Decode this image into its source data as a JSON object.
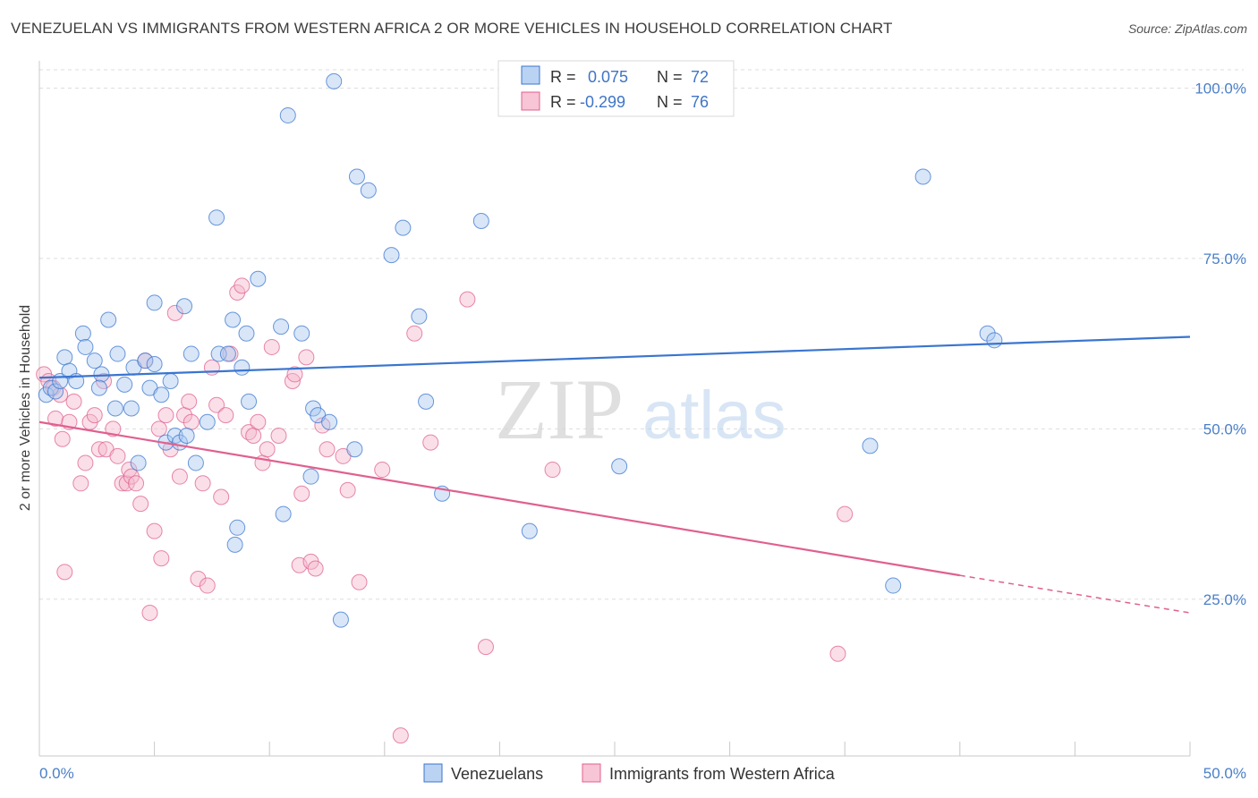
{
  "title": "VENEZUELAN VS IMMIGRANTS FROM WESTERN AFRICA 2 OR MORE VEHICLES IN HOUSEHOLD CORRELATION CHART",
  "source": "Source: ZipAtlas.com",
  "watermark": {
    "zip": "ZIP",
    "atlas": "atlas"
  },
  "colors": {
    "blue": "#3a75cf",
    "blue_fill": "#a9c8f0",
    "pink": "#e0608f",
    "pink_fill": "#f5b7cb",
    "tick": "#4a7fc8",
    "grid": "#dddddd"
  },
  "legend_box": {
    "rows": [
      {
        "r_label": "R =",
        "r_value": "0.075",
        "n_label": "N =",
        "n_value": "72"
      },
      {
        "r_label": "R =",
        "r_value": "-0.299",
        "n_label": "N =",
        "n_value": "76"
      }
    ]
  },
  "bottom_legend": {
    "venezuelans": "Venezuelans",
    "immigrants": "Immigrants from Western Africa"
  },
  "chart_data": {
    "type": "scatter",
    "title": "VENEZUELAN VS IMMIGRANTS FROM WESTERN AFRICA 2 OR MORE VEHICLES IN HOUSEHOLD CORRELATION CHART",
    "xlabel": "",
    "ylabel": "2 or more Vehicles in Household",
    "xlim": [
      0,
      50
    ],
    "ylim": [
      2,
      104
    ],
    "x_tick_labels": [
      "0.0%",
      "50.0%"
    ],
    "y_ticks": [
      25,
      50,
      75,
      100
    ],
    "y_tick_labels": [
      "25.0%",
      "50.0%",
      "75.0%",
      "100.0%"
    ],
    "grid": true,
    "series": [
      {
        "name": "Venezuelans",
        "color": "#3a75cf",
        "trend": {
          "x0": 0,
          "y0": 57.5,
          "x1": 50,
          "y1": 63.5
        },
        "points": [
          [
            0.3,
            55
          ],
          [
            0.5,
            56
          ],
          [
            0.7,
            55.5
          ],
          [
            0.9,
            57
          ],
          [
            1.1,
            60.5
          ],
          [
            1.3,
            58.5
          ],
          [
            1.6,
            57
          ],
          [
            1.9,
            64
          ],
          [
            2.0,
            62
          ],
          [
            2.4,
            60
          ],
          [
            2.7,
            58
          ],
          [
            2.6,
            56
          ],
          [
            3.0,
            66
          ],
          [
            3.3,
            53
          ],
          [
            3.4,
            61
          ],
          [
            3.7,
            56.5
          ],
          [
            4.0,
            53
          ],
          [
            4.1,
            59
          ],
          [
            4.3,
            45
          ],
          [
            4.6,
            60
          ],
          [
            4.8,
            56
          ],
          [
            5.0,
            59.5
          ],
          [
            5.0,
            68.5
          ],
          [
            5.3,
            55
          ],
          [
            5.5,
            48
          ],
          [
            5.7,
            57
          ],
          [
            5.9,
            49
          ],
          [
            6.1,
            48
          ],
          [
            6.3,
            68
          ],
          [
            6.4,
            49
          ],
          [
            6.6,
            61
          ],
          [
            6.8,
            45
          ],
          [
            7.3,
            51
          ],
          [
            7.7,
            81
          ],
          [
            7.8,
            61
          ],
          [
            8.2,
            61
          ],
          [
            8.4,
            66
          ],
          [
            8.5,
            33
          ],
          [
            8.6,
            35.5
          ],
          [
            8.8,
            59
          ],
          [
            9.0,
            64
          ],
          [
            9.1,
            54
          ],
          [
            9.5,
            72
          ],
          [
            10.5,
            65
          ],
          [
            10.6,
            37.5
          ],
          [
            10.8,
            96
          ],
          [
            11.4,
            64
          ],
          [
            11.8,
            43
          ],
          [
            11.9,
            53
          ],
          [
            12.1,
            52
          ],
          [
            12.6,
            51
          ],
          [
            12.8,
            101
          ],
          [
            13.1,
            22
          ],
          [
            13.7,
            47
          ],
          [
            13.8,
            87
          ],
          [
            14.3,
            85
          ],
          [
            15.3,
            75.5
          ],
          [
            15.8,
            79.5
          ],
          [
            16.5,
            66.5
          ],
          [
            16.8,
            54
          ],
          [
            17.5,
            40.5
          ],
          [
            19.2,
            80.5
          ],
          [
            21.3,
            35
          ],
          [
            25.2,
            44.5
          ],
          [
            36.1,
            47.5
          ],
          [
            37.1,
            27
          ],
          [
            38.4,
            87
          ],
          [
            41.2,
            64
          ],
          [
            41.5,
            63
          ]
        ]
      },
      {
        "name": "Immigrants from Western Africa",
        "color": "#e0608f",
        "trend": {
          "x0": 0,
          "y0": 51,
          "x1": 40,
          "y1": 28.5,
          "dash_x1": 50,
          "dash_y1": 23
        },
        "points": [
          [
            0.2,
            58
          ],
          [
            0.4,
            57
          ],
          [
            0.6,
            56
          ],
          [
            0.7,
            51.5
          ],
          [
            0.9,
            55
          ],
          [
            1.0,
            48.5
          ],
          [
            1.1,
            29
          ],
          [
            1.3,
            51
          ],
          [
            1.5,
            54
          ],
          [
            1.8,
            42
          ],
          [
            2.0,
            45
          ],
          [
            2.2,
            51
          ],
          [
            2.4,
            52
          ],
          [
            2.6,
            47
          ],
          [
            2.8,
            57
          ],
          [
            2.9,
            47
          ],
          [
            3.2,
            50
          ],
          [
            3.4,
            46
          ],
          [
            3.6,
            42
          ],
          [
            3.8,
            42
          ],
          [
            3.9,
            44
          ],
          [
            4.0,
            43
          ],
          [
            4.2,
            42
          ],
          [
            4.4,
            39
          ],
          [
            4.6,
            60
          ],
          [
            4.8,
            23
          ],
          [
            5.0,
            35
          ],
          [
            5.2,
            50
          ],
          [
            5.3,
            31
          ],
          [
            5.5,
            52
          ],
          [
            5.7,
            47
          ],
          [
            5.9,
            67
          ],
          [
            6.1,
            43
          ],
          [
            6.3,
            52
          ],
          [
            6.5,
            54
          ],
          [
            6.6,
            51
          ],
          [
            6.9,
            28
          ],
          [
            7.1,
            42
          ],
          [
            7.3,
            27
          ],
          [
            7.5,
            59
          ],
          [
            7.7,
            53.5
          ],
          [
            7.9,
            40
          ],
          [
            8.1,
            52
          ],
          [
            8.3,
            61
          ],
          [
            8.6,
            70
          ],
          [
            8.8,
            71
          ],
          [
            9.1,
            49.5
          ],
          [
            9.3,
            49
          ],
          [
            9.5,
            51
          ],
          [
            9.7,
            45
          ],
          [
            9.9,
            47
          ],
          [
            10.1,
            62
          ],
          [
            10.4,
            49
          ],
          [
            11.0,
            57
          ],
          [
            11.1,
            58
          ],
          [
            11.3,
            30
          ],
          [
            11.4,
            40.5
          ],
          [
            11.6,
            60.5
          ],
          [
            11.8,
            30.5
          ],
          [
            12.0,
            29.5
          ],
          [
            12.3,
            50.5
          ],
          [
            12.5,
            47
          ],
          [
            13.2,
            46
          ],
          [
            13.4,
            41
          ],
          [
            13.9,
            27.5
          ],
          [
            14.9,
            44
          ],
          [
            15.7,
            5
          ],
          [
            16.3,
            64
          ],
          [
            17.0,
            48
          ],
          [
            18.6,
            69
          ],
          [
            19.4,
            18
          ],
          [
            22.3,
            44
          ],
          [
            34.7,
            17
          ],
          [
            35.0,
            37.5
          ]
        ]
      }
    ]
  }
}
